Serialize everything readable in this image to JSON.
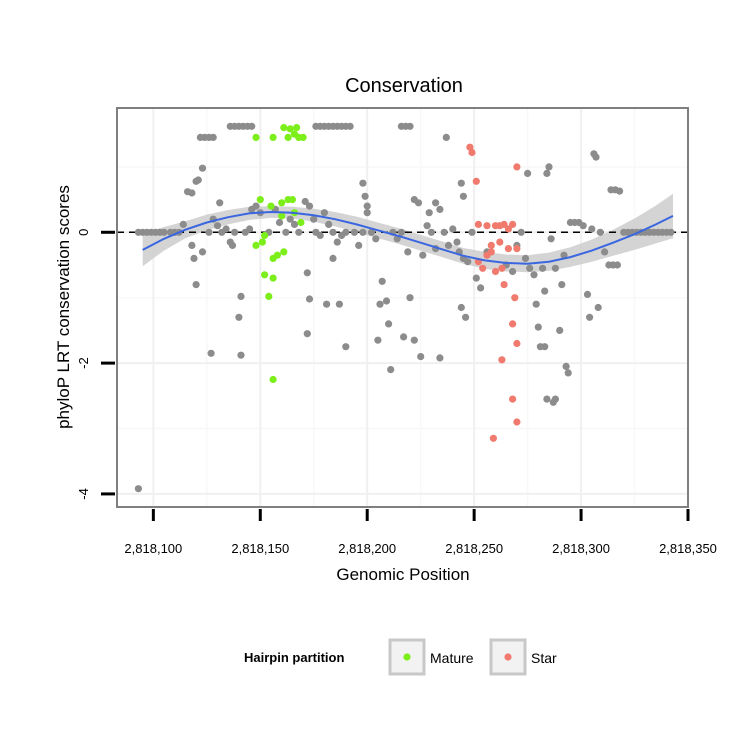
{
  "chart_data": {
    "type": "scatter",
    "title": "Conservation",
    "xlabel": "Genomic Position",
    "ylabel": "phyloP LRT conservation scores",
    "xlim": [
      2818083,
      2818350
    ],
    "ylim": [
      -4.2,
      1.9
    ],
    "x_ticks": [
      {
        "value": 2818100,
        "label": "2,818,100"
      },
      {
        "value": 2818150,
        "label": "2,818,150"
      },
      {
        "value": 2818200,
        "label": "2,818,200"
      },
      {
        "value": 2818250,
        "label": "2,818,250"
      },
      {
        "value": 2818300,
        "label": "2,818,300"
      },
      {
        "value": 2818350,
        "label": "2,818,350"
      }
    ],
    "y_ticks": [
      {
        "value": 0,
        "label": "0"
      },
      {
        "value": -2,
        "label": "-2"
      },
      {
        "value": -4,
        "label": "-4"
      }
    ],
    "reference_line": {
      "y": 0,
      "style": "dashed"
    },
    "legend": {
      "title": "Hairpin partition",
      "position": "bottom",
      "entries": [
        {
          "name": "Mature",
          "color": "#7cef1a"
        },
        {
          "name": "Star",
          "color": "#f07a6e"
        }
      ]
    },
    "colors": {
      "other": "#8c8c8c",
      "mature": "#7cef1a",
      "star": "#f07a6e",
      "smooth": "#3a66e0",
      "ribbon": "#cccccc"
    },
    "smooth": {
      "x": [
        2818095,
        2818105,
        2818115,
        2818125,
        2818135,
        2818145,
        2818155,
        2818165,
        2818175,
        2818185,
        2818195,
        2818205,
        2818215,
        2818225,
        2818235,
        2818245,
        2818255,
        2818265,
        2818275,
        2818285,
        2818295,
        2818305,
        2818315,
        2818325,
        2818335,
        2818343
      ],
      "y": [
        -0.27,
        -0.1,
        0.04,
        0.15,
        0.23,
        0.29,
        0.31,
        0.3,
        0.26,
        0.2,
        0.12,
        0.03,
        -0.06,
        -0.16,
        -0.26,
        -0.36,
        -0.43,
        -0.47,
        -0.48,
        -0.45,
        -0.38,
        -0.28,
        -0.16,
        -0.03,
        0.12,
        0.25
      ],
      "lower": [
        -0.52,
        -0.28,
        -0.09,
        0.03,
        0.12,
        0.19,
        0.22,
        0.21,
        0.16,
        0.09,
        0.0,
        -0.09,
        -0.18,
        -0.28,
        -0.38,
        -0.48,
        -0.56,
        -0.6,
        -0.61,
        -0.59,
        -0.53,
        -0.45,
        -0.36,
        -0.27,
        -0.17,
        -0.09
      ],
      "upper": [
        -0.02,
        0.08,
        0.17,
        0.27,
        0.34,
        0.39,
        0.4,
        0.39,
        0.36,
        0.31,
        0.24,
        0.15,
        0.06,
        -0.04,
        -0.14,
        -0.24,
        -0.3,
        -0.34,
        -0.35,
        -0.31,
        -0.23,
        -0.11,
        0.04,
        0.21,
        0.41,
        0.59
      ]
    },
    "series": [
      {
        "name": "Other",
        "points": [
          [
            2818093,
            0.0
          ],
          [
            2818095,
            0.0
          ],
          [
            2818097,
            0.0
          ],
          [
            2818099,
            0.0
          ],
          [
            2818101,
            0.0
          ],
          [
            2818103,
            0.0
          ],
          [
            2818105,
            0.0
          ],
          [
            2818093,
            -3.92
          ],
          [
            2818108,
            0.0
          ],
          [
            2818110,
            0.0
          ],
          [
            2818112,
            0.0
          ],
          [
            2818114,
            0.12
          ],
          [
            2818116,
            0.62
          ],
          [
            2818118,
            0.6
          ],
          [
            2818120,
            0.78
          ],
          [
            2818121,
            0.8
          ],
          [
            2818122,
            1.45
          ],
          [
            2818124,
            1.45
          ],
          [
            2818126,
            1.45
          ],
          [
            2818128,
            1.45
          ],
          [
            2818123,
            0.98
          ],
          [
            2818118,
            -0.2
          ],
          [
            2818119,
            -0.4
          ],
          [
            2818120,
            -0.8
          ],
          [
            2818123,
            -0.3
          ],
          [
            2818126,
            0.0
          ],
          [
            2818128,
            0.2
          ],
          [
            2818130,
            0.1
          ],
          [
            2818127,
            -1.85
          ],
          [
            2818132,
            0.0
          ],
          [
            2818134,
            0.05
          ],
          [
            2818136,
            -0.15
          ],
          [
            2818137,
            -0.2
          ],
          [
            2818138,
            0.0
          ],
          [
            2818131,
            0.45
          ],
          [
            2818136,
            1.62
          ],
          [
            2818138,
            1.62
          ],
          [
            2818140,
            1.62
          ],
          [
            2818142,
            1.62
          ],
          [
            2818144,
            1.62
          ],
          [
            2818146,
            1.62
          ],
          [
            2818140,
            -1.3
          ],
          [
            2818141,
            -0.98
          ],
          [
            2818141,
            -1.88
          ],
          [
            2818143,
            0.0
          ],
          [
            2818145,
            0.05
          ],
          [
            2818146,
            0.35
          ],
          [
            2818148,
            0.4
          ],
          [
            2818150,
            0.3
          ],
          [
            2818154,
            0.0
          ],
          [
            2818157,
            0.35
          ],
          [
            2818159,
            0.15
          ],
          [
            2818162,
            0.0
          ],
          [
            2818164,
            0.2
          ],
          [
            2818166,
            0.12
          ],
          [
            2818168,
            0.0
          ],
          [
            2818171,
            0.47
          ],
          [
            2818173,
            0.4
          ],
          [
            2818175,
            0.2
          ],
          [
            2818172,
            -0.62
          ],
          [
            2818173,
            -1.02
          ],
          [
            2818172,
            -1.55
          ],
          [
            2818176,
            1.62
          ],
          [
            2818178,
            1.62
          ],
          [
            2818180,
            1.62
          ],
          [
            2818182,
            1.62
          ],
          [
            2818184,
            1.62
          ],
          [
            2818186,
            1.62
          ],
          [
            2818188,
            1.62
          ],
          [
            2818190,
            1.62
          ],
          [
            2818192,
            1.62
          ],
          [
            2818176,
            0.0
          ],
          [
            2818178,
            -0.05
          ],
          [
            2818180,
            0.3
          ],
          [
            2818182,
            0.12
          ],
          [
            2818184,
            0.0
          ],
          [
            2818186,
            -0.15
          ],
          [
            2818188,
            -0.05
          ],
          [
            2818190,
            0.0
          ],
          [
            2818181,
            -1.1
          ],
          [
            2818184,
            -0.4
          ],
          [
            2818187,
            -1.1
          ],
          [
            2818190,
            -1.75
          ],
          [
            2818194,
            0.0
          ],
          [
            2818196,
            -0.2
          ],
          [
            2818198,
            0.0
          ],
          [
            2818200,
            0.3
          ],
          [
            2818198,
            0.75
          ],
          [
            2818199,
            0.55
          ],
          [
            2818200,
            0.4
          ],
          [
            2818202,
            0.0
          ],
          [
            2818204,
            -0.1
          ],
          [
            2818205,
            -1.65
          ],
          [
            2818206,
            -1.1
          ],
          [
            2818207,
            -0.75
          ],
          [
            2818209,
            -1.05
          ],
          [
            2818210,
            -1.4
          ],
          [
            2818211,
            -2.1
          ],
          [
            2818212,
            0.0
          ],
          [
            2818214,
            -0.1
          ],
          [
            2818216,
            0.0
          ],
          [
            2818216,
            1.62
          ],
          [
            2818218,
            1.62
          ],
          [
            2818220,
            1.62
          ],
          [
            2818217,
            -1.6
          ],
          [
            2818219,
            -0.3
          ],
          [
            2818220,
            -1.0
          ],
          [
            2818222,
            0.5
          ],
          [
            2818224,
            0.45
          ],
          [
            2818222,
            -1.65
          ],
          [
            2818225,
            -1.9
          ],
          [
            2818226,
            -0.35
          ],
          [
            2818228,
            0.1
          ],
          [
            2818229,
            0.3
          ],
          [
            2818230,
            0.0
          ],
          [
            2818232,
            0.45
          ],
          [
            2818234,
            0.35
          ],
          [
            2818232,
            -0.25
          ],
          [
            2818234,
            -1.92
          ],
          [
            2818236,
            0.0
          ],
          [
            2818237,
            1.45
          ],
          [
            2818238,
            -0.2
          ],
          [
            2818240,
            0.05
          ],
          [
            2818242,
            -0.15
          ],
          [
            2818243,
            -0.3
          ],
          [
            2818244,
            0.75
          ],
          [
            2818245,
            0.55
          ],
          [
            2818244,
            -1.15
          ],
          [
            2818246,
            -1.3
          ],
          [
            2818245,
            -0.4
          ],
          [
            2818247,
            -0.45
          ],
          [
            2818249,
            0.0
          ],
          [
            2818251,
            -0.7
          ],
          [
            2818253,
            -0.85
          ],
          [
            2818256,
            -0.3
          ],
          [
            2818265,
            -0.5
          ],
          [
            2818268,
            -0.6
          ],
          [
            2818270,
            -0.2
          ],
          [
            2818272,
            0.0
          ],
          [
            2818274,
            -0.4
          ],
          [
            2818275,
            0.9
          ],
          [
            2818276,
            -0.55
          ],
          [
            2818278,
            -0.65
          ],
          [
            2818279,
            -1.1
          ],
          [
            2818280,
            -1.45
          ],
          [
            2818281,
            -1.75
          ],
          [
            2818282,
            -0.55
          ],
          [
            2818283,
            -0.9
          ],
          [
            2818283,
            -1.75
          ],
          [
            2818284,
            -2.55
          ],
          [
            2818285,
            1.0
          ],
          [
            2818284,
            0.9
          ],
          [
            2818286,
            -0.1
          ],
          [
            2818288,
            -0.55
          ],
          [
            2818287,
            -2.6
          ],
          [
            2818288,
            -2.55
          ],
          [
            2818290,
            -1.5
          ],
          [
            2818291,
            -0.8
          ],
          [
            2818292,
            -0.35
          ],
          [
            2818293,
            -2.05
          ],
          [
            2818294,
            -2.15
          ],
          [
            2818295,
            0.15
          ],
          [
            2818297,
            0.15
          ],
          [
            2818299,
            0.15
          ],
          [
            2818301,
            0.1
          ],
          [
            2818303,
            -0.95
          ],
          [
            2818304,
            -1.3
          ],
          [
            2818305,
            0.05
          ],
          [
            2818306,
            1.2
          ],
          [
            2818307,
            1.15
          ],
          [
            2818308,
            -1.15
          ],
          [
            2818309,
            0.0
          ],
          [
            2818311,
            -0.3
          ],
          [
            2818313,
            -0.5
          ],
          [
            2818315,
            -0.5
          ],
          [
            2818317,
            -0.5
          ],
          [
            2818314,
            0.65
          ],
          [
            2818316,
            0.65
          ],
          [
            2818318,
            0.63
          ],
          [
            2818320,
            0.0
          ],
          [
            2818322,
            0.0
          ],
          [
            2818324,
            0.0
          ],
          [
            2818326,
            0.0
          ],
          [
            2818328,
            0.0
          ],
          [
            2818330,
            0.0
          ],
          [
            2818332,
            0.0
          ],
          [
            2818334,
            0.0
          ],
          [
            2818336,
            0.0
          ],
          [
            2818338,
            0.0
          ],
          [
            2818340,
            0.0
          ],
          [
            2818342,
            0.0
          ]
        ]
      },
      {
        "name": "Mature",
        "points": [
          [
            2818148,
            1.45
          ],
          [
            2818156,
            1.45
          ],
          [
            2818161,
            1.6
          ],
          [
            2818163,
            1.45
          ],
          [
            2818164,
            1.58
          ],
          [
            2818166,
            1.5
          ],
          [
            2818167,
            1.6
          ],
          [
            2818168,
            1.45
          ],
          [
            2818170,
            1.45
          ],
          [
            2818150,
            0.5
          ],
          [
            2818155,
            0.4
          ],
          [
            2818160,
            0.45
          ],
          [
            2818163,
            0.5
          ],
          [
            2818165,
            0.5
          ],
          [
            2818166,
            0.3
          ],
          [
            2818169,
            0.15
          ],
          [
            2818152,
            -0.05
          ],
          [
            2818148,
            -0.2
          ],
          [
            2818151,
            -0.15
          ],
          [
            2818156,
            -0.4
          ],
          [
            2818158,
            -0.35
          ],
          [
            2818161,
            -0.3
          ],
          [
            2818152,
            -0.65
          ],
          [
            2818156,
            -0.7
          ],
          [
            2818154,
            -0.98
          ],
          [
            2818156,
            -2.25
          ],
          [
            2818160,
            0.25
          ]
        ]
      },
      {
        "name": "Star",
        "points": [
          [
            2818248,
            1.3
          ],
          [
            2818249,
            1.22
          ],
          [
            2818251,
            0.78
          ],
          [
            2818270,
            1.0
          ],
          [
            2818252,
            0.12
          ],
          [
            2818256,
            0.1
          ],
          [
            2818260,
            0.1
          ],
          [
            2818262,
            0.1
          ],
          [
            2818264,
            0.12
          ],
          [
            2818268,
            0.12
          ],
          [
            2818266,
            0.05
          ],
          [
            2818258,
            -0.2
          ],
          [
            2818262,
            -0.15
          ],
          [
            2818266,
            -0.25
          ],
          [
            2818270,
            -0.25
          ],
          [
            2818252,
            -0.45
          ],
          [
            2818254,
            -0.55
          ],
          [
            2818256,
            -0.35
          ],
          [
            2818258,
            -0.3
          ],
          [
            2818260,
            -0.6
          ],
          [
            2818263,
            -0.55
          ],
          [
            2818264,
            -0.8
          ],
          [
            2818269,
            -1.0
          ],
          [
            2818268,
            -1.4
          ],
          [
            2818270,
            -1.7
          ],
          [
            2818263,
            -1.95
          ],
          [
            2818268,
            -2.55
          ],
          [
            2818270,
            -2.9
          ],
          [
            2818259,
            -3.15
          ]
        ]
      }
    ]
  }
}
